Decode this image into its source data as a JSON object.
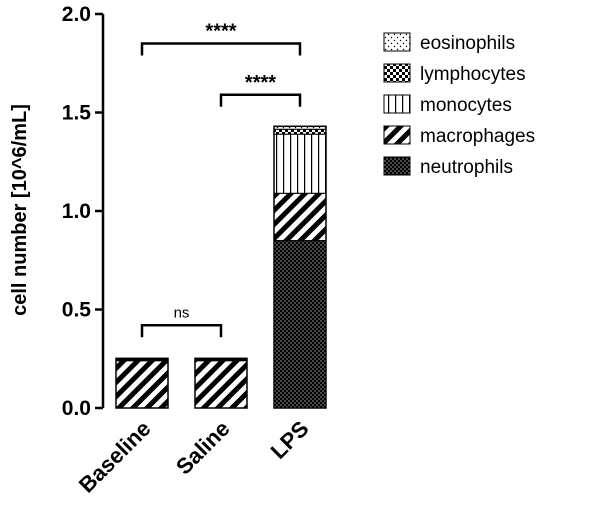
{
  "chart_data": {
    "type": "bar",
    "stacked": true,
    "ylabel": "cell number [10^6/mL]",
    "xlabel": "",
    "ylim": [
      0,
      2.0
    ],
    "yticks": [
      0.0,
      0.5,
      1.0,
      1.5,
      2.0
    ],
    "ytick_labels": [
      "0.0",
      "0.5",
      "1.0",
      "1.5",
      "2.0"
    ],
    "categories": [
      "Baseline",
      "Saline",
      "LPS"
    ],
    "series": [
      {
        "name": "neutrophils",
        "pattern": "dense-dots",
        "values": [
          0.0,
          0.0,
          0.85
        ]
      },
      {
        "name": "macrophages",
        "pattern": "diagonal-stripes",
        "values": [
          0.24,
          0.24,
          0.24
        ]
      },
      {
        "name": "monocytes",
        "pattern": "vertical-lines",
        "values": [
          0.005,
          0.005,
          0.3
        ]
      },
      {
        "name": "lymphocytes",
        "pattern": "checkerboard",
        "values": [
          0.002,
          0.002,
          0.025
        ]
      },
      {
        "name": "eosinophils",
        "pattern": "sparse-dots",
        "values": [
          0.005,
          0.005,
          0.015
        ]
      }
    ],
    "legend_order": [
      "eosinophils",
      "lymphocytes",
      "monocytes",
      "macrophages",
      "neutrophils"
    ],
    "legend_position": "top-right",
    "significance": [
      {
        "from": "Baseline",
        "to": "LPS",
        "label": "****",
        "y": 1.85
      },
      {
        "from": "Saline",
        "to": "LPS",
        "label": "****",
        "y": 1.59
      },
      {
        "from": "Baseline",
        "to": "Saline",
        "label": "ns",
        "y": 0.42
      }
    ],
    "grid": false
  }
}
